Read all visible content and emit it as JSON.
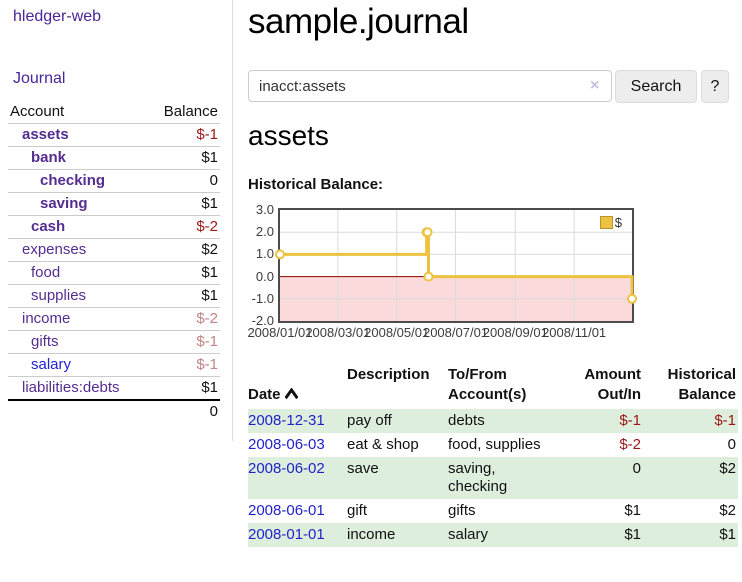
{
  "brand": "hledger-web",
  "nav": {
    "journal": "Journal"
  },
  "sidebar": {
    "col_account": "Account",
    "col_balance": "Balance",
    "accounts": [
      {
        "name": "assets",
        "indent": 1,
        "bold": true,
        "balance": "$-1",
        "balance_style": "negative-strong"
      },
      {
        "name": "bank",
        "indent": 2,
        "bold": true,
        "balance": "$1",
        "balance_style": "positive-strong"
      },
      {
        "name": "checking",
        "indent": 3,
        "bold": true,
        "balance": "0",
        "balance_style": "positive-strong"
      },
      {
        "name": "saving",
        "indent": 3,
        "bold": true,
        "balance": "$1",
        "balance_style": "positive-strong"
      },
      {
        "name": "cash",
        "indent": 2,
        "bold": true,
        "balance": "$-2",
        "balance_style": "negative-strong"
      },
      {
        "name": "expenses",
        "indent": 1,
        "bold": false,
        "balance": "$2",
        "balance_style": "positive"
      },
      {
        "name": "food",
        "indent": 2,
        "bold": false,
        "balance": "$1",
        "balance_style": "positive"
      },
      {
        "name": "supplies",
        "indent": 2,
        "bold": false,
        "balance": "$1",
        "balance_style": "positive"
      },
      {
        "name": "income",
        "indent": 1,
        "bold": false,
        "balance": "$-2",
        "balance_style": "negative-weak"
      },
      {
        "name": "gifts",
        "indent": 2,
        "bold": false,
        "balance": "$-1",
        "balance_style": "negative-weak"
      },
      {
        "name": "salary",
        "indent": 2,
        "bold": false,
        "balance": "$-1",
        "balance_style": "negative-weak"
      },
      {
        "name": "liabilities:debts",
        "indent": 1,
        "bold": false,
        "balance": "$1",
        "balance_style": "positive"
      }
    ],
    "total": "0"
  },
  "main": {
    "title": "sample.journal",
    "search": {
      "value": "inacct:assets",
      "clear": "×",
      "search_button": "Search",
      "help_button": "?"
    },
    "account_title": "assets",
    "chart_label": "Historical Balance:"
  },
  "chart_data": {
    "type": "line",
    "title": "Historical Balance",
    "legend_position": "top-right",
    "legend": [
      {
        "label": "$",
        "color": "#edc240"
      }
    ],
    "ylim": [
      -2,
      3
    ],
    "x_span_days": 365,
    "grid": true,
    "series": [
      {
        "name": "$",
        "step": true,
        "points": [
          {
            "date": "2008-01-01",
            "day": 0,
            "value": 1
          },
          {
            "date": "2008-06-01",
            "day": 152,
            "value": 2
          },
          {
            "date": "2008-06-02",
            "day": 153,
            "value": 2
          },
          {
            "date": "2008-06-03",
            "day": 154,
            "value": 0
          },
          {
            "date": "2008-12-31",
            "day": 365,
            "value": -1
          }
        ]
      }
    ],
    "x_ticks": [
      {
        "label": "2008/01/01",
        "day": 0
      },
      {
        "label": "2008/03/01",
        "day": 60
      },
      {
        "label": "2008/05/01",
        "day": 121
      },
      {
        "label": "2008/07/01",
        "day": 182
      },
      {
        "label": "2008/09/01",
        "day": 244
      },
      {
        "label": "2008/11/01",
        "day": 305
      }
    ],
    "y_ticks": [
      {
        "label": "3.0",
        "value": 3
      },
      {
        "label": "2.0",
        "value": 2
      },
      {
        "label": "1.0",
        "value": 1
      },
      {
        "label": "0.0",
        "value": 0
      },
      {
        "label": "-1.0",
        "value": -1
      },
      {
        "label": "-2.0",
        "value": -2
      }
    ],
    "colors": {
      "line": "#edc240",
      "marker_fill": "#ffffff",
      "negative_fill": "#fadada",
      "zero_line": "#8b0000",
      "grid": "#dcdcdc",
      "border": "#4c4c4c"
    }
  },
  "register": {
    "headers": {
      "date": "Date",
      "description": "Description",
      "accounts": "To/From\nAccount(s)",
      "amount": "Amount\nOut/In",
      "balance": "Historical\nBalance"
    },
    "rows": [
      {
        "date": "2008-12-31",
        "description": "pay off",
        "accounts": "debts",
        "amount": "$-1",
        "balance": "$-1"
      },
      {
        "date": "2008-06-03",
        "description": "eat & shop",
        "accounts": "food, supplies",
        "amount": "$-2",
        "balance": "0"
      },
      {
        "date": "2008-06-02",
        "description": "save",
        "accounts": "saving,\nchecking",
        "amount": "0",
        "balance": "$2"
      },
      {
        "date": "2008-06-01",
        "description": "gift",
        "accounts": "gifts",
        "amount": "$1",
        "balance": "$2"
      },
      {
        "date": "2008-01-01",
        "description": "income",
        "accounts": "salary",
        "amount": "$1",
        "balance": "$1"
      }
    ]
  }
}
